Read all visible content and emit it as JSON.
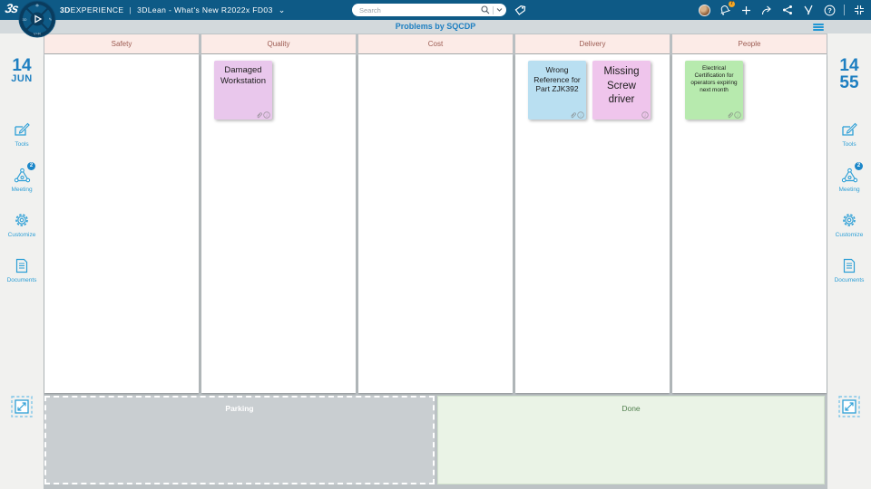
{
  "top_bar": {
    "brand_bold": "3D",
    "brand_rest": "EXPERIENCE",
    "divider": "|",
    "app_title": "3DLean - What's New R2022x FD03",
    "search_placeholder": "Search",
    "bell_badge": "7"
  },
  "title_bar": {
    "title": "Problems by SQCDP"
  },
  "sidebar": {
    "left_date": {
      "day": "14",
      "month": "JUN"
    },
    "right_time": {
      "hours": "14",
      "minutes": "55"
    },
    "items": [
      {
        "label": "Tools"
      },
      {
        "label": "Meeting",
        "badge": "2"
      },
      {
        "label": "Customize"
      },
      {
        "label": "Documents"
      }
    ]
  },
  "board": {
    "columns": [
      {
        "label": "Safety",
        "notes": []
      },
      {
        "label": "Quality",
        "notes": [
          {
            "text": "Damaged Workstation",
            "color": "#e9c7ec",
            "text_size": "m",
            "has_attachment": true,
            "has_info": true
          }
        ]
      },
      {
        "label": "Cost",
        "notes": []
      },
      {
        "label": "Delivery",
        "notes": [
          {
            "text": "Wrong Reference for Part ZJK392",
            "color": "#b9dff1",
            "text_size": "s",
            "has_attachment": true,
            "has_info": true
          },
          {
            "text": "Missing Screw driver",
            "color": "#efc5ec",
            "text_size": "l",
            "has_attachment": false,
            "has_info": true
          }
        ]
      },
      {
        "label": "People",
        "notes": [
          {
            "text": "Electrical Certification for operators expiring next month",
            "color": "#b7eaae",
            "text_size": "xs",
            "has_attachment": true,
            "has_info": true
          }
        ]
      }
    ],
    "parking_label": "Parking",
    "done_label": "Done"
  },
  "colors": {
    "topbar_blue": "#0e5a86",
    "accent_blue": "#2d9fd6",
    "title_blue": "#1e7fc1",
    "header_pink": "#fcebe7",
    "header_text": "#9c5b52",
    "badge_orange": "#f5a623",
    "badge_blue": "#1c87c9"
  }
}
